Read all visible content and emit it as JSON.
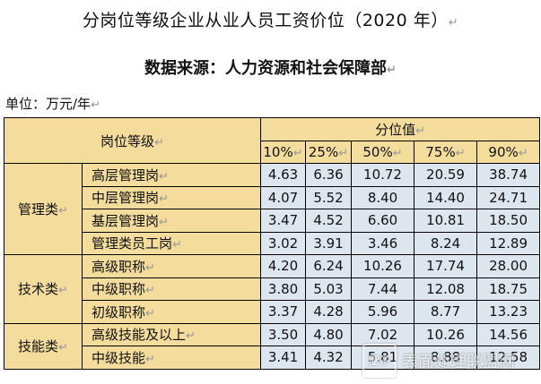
{
  "title": "分岗位等级企业从业人员工资价位（2020 年）",
  "subtitle": "数据来源：人力资源和社会保障部",
  "unit": "单位：万元/年",
  "mark": "↵",
  "table": {
    "post_level_header": "岗位等级",
    "quantile_header": "分位值",
    "quantiles": [
      "10%",
      "25%",
      "50%",
      "75%",
      "90%"
    ],
    "categories": [
      {
        "name": "管理类",
        "rows": [
          {
            "post": "高层管理岗",
            "values": [
              "4.63",
              "6.36",
              "10.72",
              "20.59",
              "38.74"
            ]
          },
          {
            "post": "中层管理岗",
            "values": [
              "4.07",
              "5.52",
              "8.40",
              "14.40",
              "24.71"
            ]
          },
          {
            "post": "基层管理岗",
            "values": [
              "3.47",
              "4.52",
              "6.60",
              "10.81",
              "18.50"
            ]
          },
          {
            "post": "管理类员工岗",
            "values": [
              "3.02",
              "3.91",
              "3.46",
              "8.24",
              "12.89"
            ]
          }
        ]
      },
      {
        "name": "技术类",
        "rows": [
          {
            "post": "高级职称",
            "values": [
              "4.20",
              "6.24",
              "10.26",
              "17.74",
              "28.00"
            ]
          },
          {
            "post": "中级职称",
            "values": [
              "3.80",
              "5.03",
              "7.44",
              "12.08",
              "18.75"
            ]
          },
          {
            "post": "初级职称",
            "values": [
              "3.37",
              "4.28",
              "5.96",
              "8.77",
              "13.23"
            ]
          }
        ]
      },
      {
        "name": "技能类",
        "rows": [
          {
            "post": "高级技能及以上",
            "values": [
              "3.50",
              "4.80",
              "7.02",
              "10.26",
              "14.56"
            ]
          },
          {
            "post": "中级技能",
            "values": [
              "3.41",
              "4.32",
              "5.81",
              "8.88",
              "12.58"
            ]
          }
        ]
      }
    ]
  },
  "watermark": {
    "logo_text": "圈子",
    "text": "表面处理联盟网"
  }
}
